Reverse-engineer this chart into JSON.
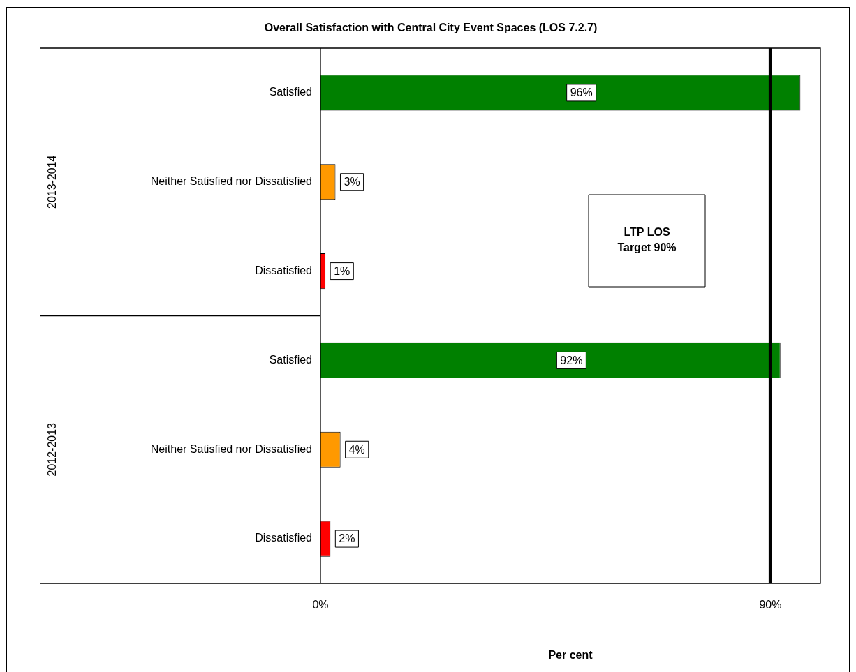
{
  "chart_data": {
    "type": "bar",
    "orientation": "horizontal",
    "title": "Overall Satisfaction with Central City Event Spaces (LOS 7.2.7)",
    "xlabel": "Per cent",
    "categories": [
      "Satisfied",
      "Neither Satisfied nor Dissatisfied",
      "Dissatisfied",
      "Satisfied",
      "Neither Satisfied nor Dissatisfied",
      "Dissatisfied"
    ],
    "values": [
      96,
      3,
      1,
      92,
      4,
      2
    ],
    "colors": [
      "#008000",
      "#ff9900",
      "#ff0000",
      "#008000",
      "#ff9900",
      "#ff0000"
    ],
    "value_labels": [
      "96%",
      "3%",
      "1%",
      "92%",
      "4%",
      "2%"
    ],
    "xlim": [
      0,
      100
    ],
    "xticks": [
      {
        "value": 0,
        "label": "0%"
      },
      {
        "value": 90,
        "label": "90%"
      }
    ],
    "ref_lines": [
      {
        "axis": "x",
        "value": 90,
        "label": "LTP LOS Target 90%",
        "color": "#000000"
      }
    ],
    "annotations": [
      "2013-2014",
      "2012-2013"
    ],
    "grid": false,
    "legend": false
  }
}
